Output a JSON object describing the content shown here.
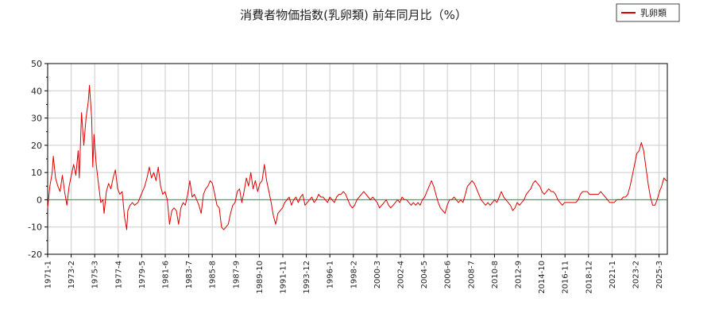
{
  "chart_data": {
    "type": "line",
    "title": "消費者物価指数(乳卵類) 前年同月比（%）",
    "xlabel": "",
    "ylabel": "",
    "ylim": [
      -20,
      50
    ],
    "yticks": [
      -20,
      -10,
      0,
      10,
      20,
      30,
      40,
      50
    ],
    "xlim": [
      1971.0,
      2025.9
    ],
    "x_tick_labels": [
      "1971-1",
      "1973-2",
      "1975-3",
      "1977-4",
      "1979-5",
      "1981-6",
      "1983-7",
      "1985-8",
      "1987-9",
      "1989-10",
      "1991-11",
      "1993-12",
      "1996-1",
      "1998-2",
      "2000-3",
      "2002-4",
      "2004-5",
      "2006-6",
      "2008-7",
      "2010-8",
      "2012-9",
      "2014-10",
      "2016-11",
      "2018-12",
      "2021-1",
      "2023-2",
      "2025-3"
    ],
    "grid": true,
    "zero_line": true,
    "legend": "top-right",
    "series": [
      {
        "name": "乳卵類",
        "color": "#dd0000",
        "points": [
          [
            1971.0,
            -3
          ],
          [
            1971.2,
            5
          ],
          [
            1971.4,
            10
          ],
          [
            1971.5,
            16
          ],
          [
            1971.7,
            8
          ],
          [
            1971.9,
            5
          ],
          [
            1972.1,
            3
          ],
          [
            1972.3,
            9
          ],
          [
            1972.5,
            3
          ],
          [
            1972.7,
            -2
          ],
          [
            1972.9,
            5
          ],
          [
            1973.1,
            9
          ],
          [
            1973.3,
            13
          ],
          [
            1973.5,
            9
          ],
          [
            1973.7,
            18
          ],
          [
            1973.8,
            8
          ],
          [
            1974.0,
            32
          ],
          [
            1974.2,
            20
          ],
          [
            1974.4,
            30
          ],
          [
            1974.6,
            36
          ],
          [
            1974.7,
            42
          ],
          [
            1974.9,
            30
          ],
          [
            1975.0,
            12
          ],
          [
            1975.1,
            24
          ],
          [
            1975.3,
            13
          ],
          [
            1975.5,
            6
          ],
          [
            1975.7,
            -1
          ],
          [
            1975.9,
            0
          ],
          [
            1976.0,
            -5
          ],
          [
            1976.2,
            3
          ],
          [
            1976.4,
            6
          ],
          [
            1976.6,
            4
          ],
          [
            1976.8,
            8
          ],
          [
            1977.0,
            11
          ],
          [
            1977.2,
            4
          ],
          [
            1977.4,
            2
          ],
          [
            1977.6,
            3
          ],
          [
            1977.8,
            -6
          ],
          [
            1978.0,
            -11
          ],
          [
            1978.1,
            -4
          ],
          [
            1978.3,
            -2
          ],
          [
            1978.5,
            -1
          ],
          [
            1978.7,
            -2
          ],
          [
            1979.0,
            -1
          ],
          [
            1979.2,
            1
          ],
          [
            1979.4,
            3
          ],
          [
            1979.6,
            5
          ],
          [
            1979.8,
            8
          ],
          [
            1980.0,
            12
          ],
          [
            1980.2,
            8
          ],
          [
            1980.4,
            10
          ],
          [
            1980.6,
            7
          ],
          [
            1980.8,
            12
          ],
          [
            1981.0,
            5
          ],
          [
            1981.2,
            2
          ],
          [
            1981.4,
            3
          ],
          [
            1981.6,
            0
          ],
          [
            1981.8,
            -9
          ],
          [
            1982.0,
            -4
          ],
          [
            1982.2,
            -3
          ],
          [
            1982.4,
            -4
          ],
          [
            1982.6,
            -9
          ],
          [
            1982.8,
            -3
          ],
          [
            1983.0,
            -1
          ],
          [
            1983.2,
            -2
          ],
          [
            1983.4,
            2
          ],
          [
            1983.6,
            7
          ],
          [
            1983.8,
            1
          ],
          [
            1984.0,
            2
          ],
          [
            1984.2,
            0
          ],
          [
            1984.4,
            -2
          ],
          [
            1984.6,
            -5
          ],
          [
            1984.8,
            2
          ],
          [
            1985.0,
            4
          ],
          [
            1985.2,
            5
          ],
          [
            1985.4,
            7
          ],
          [
            1985.6,
            6
          ],
          [
            1985.8,
            2
          ],
          [
            1986.0,
            -2
          ],
          [
            1986.2,
            -3
          ],
          [
            1986.4,
            -10
          ],
          [
            1986.6,
            -11
          ],
          [
            1986.8,
            -10
          ],
          [
            1987.0,
            -9
          ],
          [
            1987.2,
            -5
          ],
          [
            1987.4,
            -2
          ],
          [
            1987.6,
            -1
          ],
          [
            1987.8,
            3
          ],
          [
            1988.0,
            4
          ],
          [
            1988.2,
            -1
          ],
          [
            1988.4,
            3
          ],
          [
            1988.6,
            8
          ],
          [
            1988.8,
            5
          ],
          [
            1989.0,
            10
          ],
          [
            1989.2,
            4
          ],
          [
            1989.4,
            7
          ],
          [
            1989.6,
            3
          ],
          [
            1989.8,
            6
          ],
          [
            1990.0,
            7
          ],
          [
            1990.2,
            13
          ],
          [
            1990.4,
            7
          ],
          [
            1990.6,
            3
          ],
          [
            1990.8,
            -1
          ],
          [
            1991.0,
            -6
          ],
          [
            1991.2,
            -9
          ],
          [
            1991.4,
            -5
          ],
          [
            1991.6,
            -4
          ],
          [
            1991.8,
            -3
          ],
          [
            1992.0,
            -1
          ],
          [
            1992.2,
            0
          ],
          [
            1992.4,
            1
          ],
          [
            1992.6,
            -2
          ],
          [
            1992.8,
            0
          ],
          [
            1993.0,
            1
          ],
          [
            1993.2,
            -1
          ],
          [
            1993.4,
            1
          ],
          [
            1993.6,
            2
          ],
          [
            1993.8,
            -2
          ],
          [
            1994.0,
            -1
          ],
          [
            1994.2,
            0
          ],
          [
            1994.4,
            1
          ],
          [
            1994.6,
            -1
          ],
          [
            1994.8,
            0
          ],
          [
            1995.0,
            2
          ],
          [
            1995.2,
            1
          ],
          [
            1995.4,
            1
          ],
          [
            1995.6,
            0
          ],
          [
            1995.8,
            -1
          ],
          [
            1996.0,
            1
          ],
          [
            1996.2,
            0
          ],
          [
            1996.4,
            -1
          ],
          [
            1996.6,
            1
          ],
          [
            1996.8,
            2
          ],
          [
            1997.0,
            2
          ],
          [
            1997.2,
            3
          ],
          [
            1997.4,
            2
          ],
          [
            1997.6,
            0
          ],
          [
            1997.8,
            -2
          ],
          [
            1998.0,
            -3
          ],
          [
            1998.2,
            -2
          ],
          [
            1998.4,
            0
          ],
          [
            1998.6,
            1
          ],
          [
            1998.8,
            2
          ],
          [
            1999.0,
            3
          ],
          [
            1999.2,
            2
          ],
          [
            1999.4,
            1
          ],
          [
            1999.6,
            0
          ],
          [
            1999.8,
            1
          ],
          [
            2000.0,
            0
          ],
          [
            2000.2,
            -1
          ],
          [
            2000.4,
            -3
          ],
          [
            2000.6,
            -2
          ],
          [
            2000.8,
            -1
          ],
          [
            2001.0,
            0
          ],
          [
            2001.2,
            -2
          ],
          [
            2001.4,
            -3
          ],
          [
            2001.6,
            -2
          ],
          [
            2001.8,
            -1
          ],
          [
            2002.0,
            0
          ],
          [
            2002.2,
            -1
          ],
          [
            2002.4,
            1
          ],
          [
            2002.6,
            0
          ],
          [
            2002.8,
            0
          ],
          [
            2003.0,
            -1
          ],
          [
            2003.2,
            -2
          ],
          [
            2003.4,
            -1
          ],
          [
            2003.6,
            -2
          ],
          [
            2003.8,
            -1
          ],
          [
            2004.0,
            -2
          ],
          [
            2004.2,
            0
          ],
          [
            2004.4,
            1
          ],
          [
            2004.6,
            3
          ],
          [
            2004.8,
            5
          ],
          [
            2005.0,
            7
          ],
          [
            2005.2,
            5
          ],
          [
            2005.4,
            2
          ],
          [
            2005.6,
            -1
          ],
          [
            2005.8,
            -3
          ],
          [
            2006.0,
            -4
          ],
          [
            2006.2,
            -5
          ],
          [
            2006.4,
            -2
          ],
          [
            2006.6,
            0
          ],
          [
            2006.8,
            0
          ],
          [
            2007.0,
            1
          ],
          [
            2007.2,
            0
          ],
          [
            2007.4,
            -1
          ],
          [
            2007.6,
            0
          ],
          [
            2007.8,
            -1
          ],
          [
            2008.0,
            2
          ],
          [
            2008.2,
            5
          ],
          [
            2008.4,
            6
          ],
          [
            2008.6,
            7
          ],
          [
            2008.8,
            6
          ],
          [
            2009.0,
            4
          ],
          [
            2009.2,
            2
          ],
          [
            2009.4,
            0
          ],
          [
            2009.6,
            -1
          ],
          [
            2009.8,
            -2
          ],
          [
            2010.0,
            -1
          ],
          [
            2010.2,
            -2
          ],
          [
            2010.4,
            -1
          ],
          [
            2010.6,
            0
          ],
          [
            2010.8,
            -1
          ],
          [
            2011.0,
            1
          ],
          [
            2011.2,
            3
          ],
          [
            2011.4,
            1
          ],
          [
            2011.6,
            0
          ],
          [
            2011.8,
            -1
          ],
          [
            2012.0,
            -2
          ],
          [
            2012.2,
            -4
          ],
          [
            2012.4,
            -3
          ],
          [
            2012.6,
            -1
          ],
          [
            2012.8,
            -2
          ],
          [
            2013.0,
            -1
          ],
          [
            2013.2,
            0
          ],
          [
            2013.4,
            2
          ],
          [
            2013.6,
            3
          ],
          [
            2013.8,
            4
          ],
          [
            2014.0,
            6
          ],
          [
            2014.2,
            7
          ],
          [
            2014.4,
            6
          ],
          [
            2014.6,
            5
          ],
          [
            2014.8,
            3
          ],
          [
            2015.0,
            2
          ],
          [
            2015.2,
            3
          ],
          [
            2015.4,
            4
          ],
          [
            2015.6,
            3
          ],
          [
            2015.8,
            3
          ],
          [
            2016.0,
            2
          ],
          [
            2016.2,
            0
          ],
          [
            2016.4,
            -1
          ],
          [
            2016.6,
            -2
          ],
          [
            2016.8,
            -1
          ],
          [
            2017.0,
            -1
          ],
          [
            2017.2,
            -1
          ],
          [
            2017.4,
            -1
          ],
          [
            2017.6,
            -1
          ],
          [
            2017.8,
            -1
          ],
          [
            2018.0,
            0
          ],
          [
            2018.2,
            2
          ],
          [
            2018.4,
            3
          ],
          [
            2018.6,
            3
          ],
          [
            2018.8,
            3
          ],
          [
            2019.0,
            2
          ],
          [
            2019.2,
            2
          ],
          [
            2019.4,
            2
          ],
          [
            2019.6,
            2
          ],
          [
            2019.8,
            2
          ],
          [
            2020.0,
            3
          ],
          [
            2020.2,
            2
          ],
          [
            2020.4,
            1
          ],
          [
            2020.6,
            0
          ],
          [
            2020.8,
            -1
          ],
          [
            2021.0,
            -1
          ],
          [
            2021.2,
            -1
          ],
          [
            2021.4,
            0
          ],
          [
            2021.6,
            0
          ],
          [
            2021.8,
            0
          ],
          [
            2022.0,
            1
          ],
          [
            2022.2,
            1
          ],
          [
            2022.4,
            2
          ],
          [
            2022.6,
            5
          ],
          [
            2022.8,
            9
          ],
          [
            2023.0,
            13
          ],
          [
            2023.2,
            17
          ],
          [
            2023.4,
            18
          ],
          [
            2023.6,
            21
          ],
          [
            2023.8,
            18
          ],
          [
            2024.0,
            12
          ],
          [
            2024.2,
            6
          ],
          [
            2024.4,
            1
          ],
          [
            2024.6,
            -2
          ],
          [
            2024.8,
            -2
          ],
          [
            2025.0,
            0
          ],
          [
            2025.2,
            3
          ],
          [
            2025.4,
            5
          ],
          [
            2025.6,
            8
          ],
          [
            2025.8,
            7
          ],
          [
            2025.9,
            7
          ]
        ]
      }
    ]
  }
}
